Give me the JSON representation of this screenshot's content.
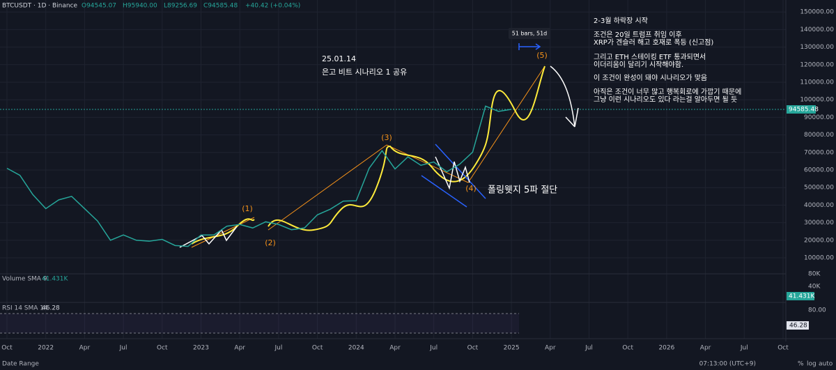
{
  "header": {
    "symbol": "BTCUSDT · 1D · Binance",
    "open": "O94545.07",
    "high": "H95940.00",
    "low": "L89256.69",
    "close": "C94585.48",
    "change": "+40.42 (+0.04%)"
  },
  "chart_data": {
    "type": "line",
    "color": "#26a69a",
    "x": [
      0,
      1,
      2,
      3,
      4,
      5,
      6,
      7,
      8,
      9,
      10,
      11,
      12,
      13,
      14,
      15,
      16,
      17,
      18,
      19,
      20,
      21,
      22,
      23,
      24,
      25,
      26,
      27,
      28,
      29,
      30,
      31,
      32,
      33,
      34,
      35,
      36,
      37,
      38,
      39
    ],
    "values": [
      61000,
      57000,
      46000,
      38000,
      43000,
      45000,
      38000,
      31000,
      20000,
      23000,
      20000,
      19500,
      20500,
      17000,
      16500,
      23000,
      23000,
      28000,
      29000,
      27000,
      30500,
      29000,
      26000,
      27000,
      34500,
      37700,
      42300,
      42500,
      61000,
      71000,
      60600,
      67500,
      62700,
      64600,
      59000,
      63300,
      70200,
      96400,
      93400,
      94585
    ],
    "xlim": [
      0,
      60
    ],
    "ylim": [
      873,
      156825
    ],
    "xticks": [
      {
        "value": 0,
        "label": "Oct"
      },
      {
        "value": 3,
        "label": "2022"
      },
      {
        "value": 6,
        "label": "Apr"
      },
      {
        "value": 9,
        "label": "Jul"
      },
      {
        "value": 12,
        "label": "Oct"
      },
      {
        "value": 15,
        "label": "2023"
      },
      {
        "value": 18,
        "label": "Apr"
      },
      {
        "value": 21,
        "label": "Jul"
      },
      {
        "value": 24,
        "label": "Oct"
      },
      {
        "value": 27,
        "label": "2024"
      },
      {
        "value": 30,
        "label": "Apr"
      },
      {
        "value": 33,
        "label": "Jul"
      },
      {
        "value": 36,
        "label": "Oct"
      },
      {
        "value": 39,
        "label": "2025"
      },
      {
        "value": 42,
        "label": "Apr"
      },
      {
        "value": 45,
        "label": "Jul"
      },
      {
        "value": 48,
        "label": "Oct"
      },
      {
        "value": 51,
        "label": "2026"
      },
      {
        "value": 54,
        "label": "Apr"
      },
      {
        "value": 57,
        "label": "Jul"
      },
      {
        "value": 60,
        "label": "Oct"
      }
    ],
    "yticks": [
      {
        "value": 10000,
        "label": "10000.00"
      },
      {
        "value": 20000,
        "label": "20000.00"
      },
      {
        "value": 30000,
        "label": "30000.00"
      },
      {
        "value": 40000,
        "label": "40000.00"
      },
      {
        "value": 50000,
        "label": "50000.00"
      },
      {
        "value": 60000,
        "label": "60000.00"
      },
      {
        "value": 70000,
        "label": "70000.00"
      },
      {
        "value": 80000,
        "label": "80000.00"
      },
      {
        "value": 90000,
        "label": "90000.00"
      },
      {
        "value": 100000,
        "label": "100000.00"
      },
      {
        "value": 110000,
        "label": "110000.00"
      },
      {
        "value": 120000,
        "label": "120000.00"
      },
      {
        "value": 130000,
        "label": "130000.00"
      },
      {
        "value": 140000,
        "label": "140000.00"
      },
      {
        "value": 150000,
        "label": "150000.00"
      }
    ],
    "grid": true,
    "last_price": "94585.48"
  },
  "volume": {
    "title": "Volume SMA 9",
    "value": "41.431K",
    "ticks": [
      "80K",
      "40K"
    ]
  },
  "rsi": {
    "title": "RSI 14 SMA 14",
    "value": "46.28",
    "tick": "80.00"
  },
  "annotations": {
    "date": "25.01.14",
    "share": "은고 비트 시나리오 1 공유",
    "waves": [
      "(1)",
      "(2)",
      "(3)",
      "(4)",
      "(5)"
    ],
    "wedge": "폴링웻지 5파 절단",
    "measure": "51 bars, 51d",
    "notes": [
      "2-3월 하락장 시작",
      "조건은 20일 트럼프 취임 이후",
      "XRP가 겐슬러 해고 호재로 폭등 (신고점)",
      "그리고 ETH 스테이킹 ETF 통과되면서",
      "이더리움이 달리기 시작해야함.",
      "이 조건이 완성이 돼야 시나리오가 맞음",
      "아직은 조건이 너무 많고 행복회로에 가깝기 때문에",
      "그냥 이런 시나리오도 있다 라는걸 알아두면 될 듯"
    ]
  },
  "footer": {
    "range": "Date Range",
    "time": "07:13:00 (UTC+9)",
    "pct": "%",
    "log": "log",
    "auto": "auto"
  }
}
